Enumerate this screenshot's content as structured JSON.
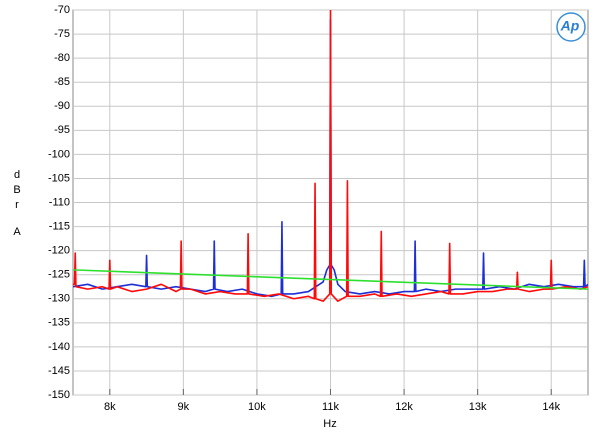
{
  "chart_data": {
    "type": "line",
    "logo": "Ap",
    "xlabel": "Hz",
    "ylabel_lines": [
      "d",
      "B",
      "r",
      "A"
    ],
    "xlim": [
      7500,
      14500
    ],
    "ylim": [
      -150,
      -70
    ],
    "xticks": [
      {
        "value": 8000,
        "label": "8k"
      },
      {
        "value": 9000,
        "label": "9k"
      },
      {
        "value": 10000,
        "label": "10k"
      },
      {
        "value": 11000,
        "label": "11k"
      },
      {
        "value": 12000,
        "label": "12k"
      },
      {
        "value": 13000,
        "label": "13k"
      },
      {
        "value": 14000,
        "label": "14k"
      }
    ],
    "yticks": [
      -70,
      -75,
      -80,
      -85,
      -90,
      -95,
      -100,
      -105,
      -110,
      -115,
      -120,
      -125,
      -130,
      -135,
      -140,
      -145,
      -150
    ],
    "grid": true,
    "series": [
      {
        "color": "#1e2ed6",
        "x": [
          7500,
          7700,
          7900,
          8100,
          8300,
          8490,
          8500,
          8510,
          8700,
          8900,
          9100,
          9300,
          9410,
          9420,
          9430,
          9600,
          9800,
          10000,
          10200,
          10330,
          10340,
          10350,
          10500,
          10700,
          10800,
          10900,
          10950,
          10990,
          11000,
          11010,
          11050,
          11100,
          11200,
          11400,
          11600,
          11800,
          12000,
          12140,
          12150,
          12160,
          12300,
          12500,
          12700,
          12900,
          13070,
          13080,
          13090,
          13300,
          13500,
          13700,
          13900,
          14100,
          14300,
          14440,
          14450,
          14460,
          14500
        ],
        "values": [
          -127.5,
          -127,
          -128,
          -127.5,
          -127,
          -127.5,
          -121,
          -127.5,
          -128,
          -127.5,
          -128,
          -128.5,
          -128,
          -118,
          -128,
          -128.5,
          -128,
          -129,
          -129.5,
          -129,
          -114,
          -129,
          -129,
          -128.5,
          -127.5,
          -126.5,
          -124,
          -123,
          -72,
          -123,
          -124,
          -127,
          -128.5,
          -129,
          -128.5,
          -129,
          -128.5,
          -128.5,
          -118,
          -128.5,
          -128,
          -128.5,
          -128,
          -128,
          -128,
          -120.5,
          -128,
          -127.5,
          -128,
          -127,
          -127.5,
          -127,
          -127.5,
          -127.5,
          -122,
          -127.5,
          -127
        ]
      },
      {
        "color": "#ff0a0a",
        "x": [
          7500,
          7520,
          7530,
          7540,
          7700,
          7900,
          7990,
          8000,
          8010,
          8100,
          8300,
          8500,
          8700,
          8900,
          8960,
          8970,
          8980,
          9100,
          9300,
          9500,
          9700,
          9870,
          9880,
          9890,
          10100,
          10300,
          10500,
          10700,
          10780,
          10790,
          10800,
          10900,
          10990,
          11000,
          11010,
          11100,
          11220,
          11230,
          11240,
          11400,
          11600,
          11680,
          11690,
          11700,
          11900,
          12100,
          12300,
          12500,
          12610,
          12620,
          12630,
          12800,
          13000,
          13200,
          13400,
          13530,
          13540,
          13550,
          13700,
          13900,
          13990,
          14000,
          14010,
          14200,
          14400,
          14500
        ],
        "values": [
          -127,
          -127,
          -120.5,
          -127.5,
          -128,
          -127.5,
          -128,
          -122,
          -128,
          -127.5,
          -128.5,
          -128,
          -127,
          -128.5,
          -128,
          -118,
          -128,
          -128,
          -129,
          -128.5,
          -129,
          -129,
          -116.5,
          -129,
          -129.5,
          -129,
          -130,
          -129.5,
          -130,
          -106,
          -130,
          -130.5,
          -129,
          -70,
          -129,
          -130.5,
          -129.5,
          -105.5,
          -129.5,
          -129.5,
          -129,
          -129.5,
          -116,
          -129.5,
          -129,
          -129.5,
          -129,
          -128.5,
          -129,
          -118.5,
          -129,
          -129,
          -128.5,
          -128.5,
          -128,
          -128,
          -124.5,
          -128,
          -128.5,
          -128,
          -128,
          -122,
          -128,
          -127.5,
          -128,
          -127.5
        ]
      },
      {
        "color": "#2ee02e",
        "x": [
          7500,
          14500
        ],
        "values": [
          -124,
          -128
        ]
      }
    ]
  }
}
